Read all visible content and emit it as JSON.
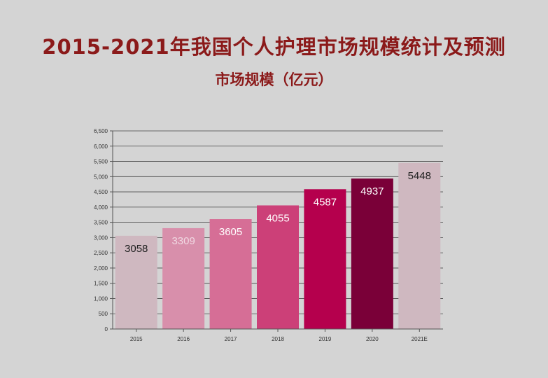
{
  "header": {
    "title": "2015-2021年我国个人护理市场规模统计及预测",
    "subtitle": "市场规模（亿元）"
  },
  "chart_data": {
    "type": "bar",
    "categories": [
      "2015",
      "2016",
      "2017",
      "2018",
      "2019",
      "2020",
      "2021E"
    ],
    "values": [
      3058,
      3309,
      3605,
      4055,
      4587,
      4937,
      5448
    ],
    "ylim": [
      0,
      6500
    ],
    "yticks": [
      "0",
      "500",
      "1,000",
      "1,500",
      "2,000",
      "2,500",
      "3,000",
      "3,500",
      "4,000",
      "4,500",
      "5,000",
      "5,500",
      "6,000",
      "6,500"
    ],
    "grid": true,
    "bar_colors": [
      "#cfb8c0",
      "#d88fab",
      "#d66e96",
      "#cc4078",
      "#b5004d",
      "#7a0038",
      "#cfb8c0"
    ],
    "label_colors": [
      "#222222",
      "#f0d8e2",
      "#ffffff",
      "#ffffff",
      "#ffffff",
      "#ffffff",
      "#222222"
    ]
  }
}
